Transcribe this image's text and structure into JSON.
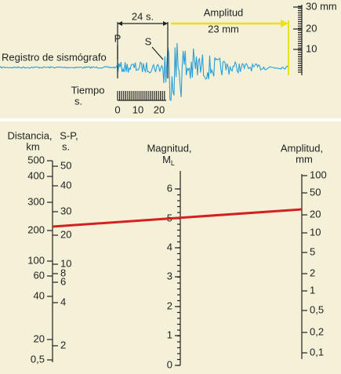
{
  "seismogram": {
    "label": "Registro de sismógrafo",
    "interval": "24 s.",
    "p": "P",
    "s": "S",
    "amplitude_title": "Amplitud",
    "amplitude_value": "23 mm",
    "time_title": "Tiempo",
    "time_unit": "s.",
    "time_ticks": [
      "0",
      "10",
      "20"
    ],
    "amplitude_ticks": [
      "30 mm",
      "20",
      "10"
    ]
  },
  "nomogram": {
    "distance": {
      "title": "Distancia,",
      "unit": "km",
      "ticks": [
        "500",
        "400",
        "300",
        "200",
        "100",
        "60",
        "40",
        "20",
        "0,5"
      ]
    },
    "sp": {
      "title": "S-P,",
      "unit": "s.",
      "ticks": [
        "50",
        "40",
        "30",
        "20",
        "10",
        "8",
        "6",
        "4",
        "2"
      ]
    },
    "magnitude": {
      "title": "Magnitud,",
      "symbol": "M",
      "subscript": "L",
      "ticks": [
        "6",
        "5",
        "4",
        "3",
        "2",
        "1",
        "0"
      ]
    },
    "amplitude": {
      "title": "Amplitud,",
      "unit": "mm",
      "ticks": [
        "100",
        "50",
        "20",
        "10",
        "5",
        "2",
        "1",
        "0,5",
        "0,2",
        "0,1"
      ]
    }
  }
}
